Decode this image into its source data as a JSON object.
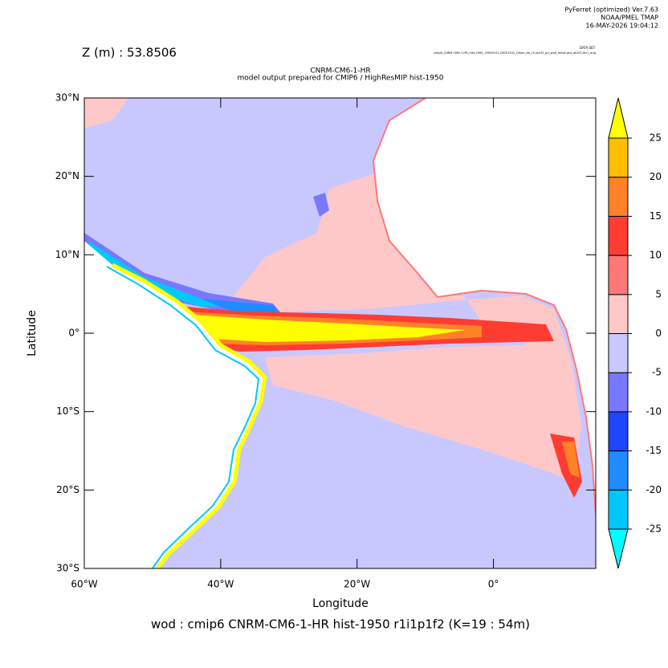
{
  "header": {
    "program": "PyFerret (optimized) Ver.7.63",
    "lab": "NOAA/PMEL TMAP",
    "date": "16-MAY-2026 19:04:12",
    "dataset_label": "DATA SET:",
    "dataset": "cmip6_CNRM-CM6-1-HR_hist-1950_19500101-20051231_Omon_tm_r1i1p1f2_gn_wod_mean.gtd_at023-lev1_orig",
    "depth": "Z (m) : 53.8506"
  },
  "chart_data": {
    "type": "map",
    "title": "CNRM-CM6-1-HR",
    "subtitle": "model output prepared for CMIP6 / HighResMIP hist-1950",
    "x_label": "Longitude",
    "y_label": "Latitude",
    "xlim": [
      -60,
      15
    ],
    "ylim": [
      -30,
      30
    ],
    "xticks": [
      {
        "value": -60,
        "label": "60°W"
      },
      {
        "value": -40,
        "label": "40°W"
      },
      {
        "value": -20,
        "label": "20°W"
      },
      {
        "value": 0,
        "label": "0°"
      }
    ],
    "yticks": [
      {
        "value": 30,
        "label": "30°N"
      },
      {
        "value": 20,
        "label": "20°N"
      },
      {
        "value": 10,
        "label": "10°N"
      },
      {
        "value": 0,
        "label": "0°"
      },
      {
        "value": -10,
        "label": "10°S"
      },
      {
        "value": -20,
        "label": "20°S"
      },
      {
        "value": -30,
        "label": "30°S"
      }
    ],
    "colorbar": {
      "levels": [
        -25,
        -20,
        -15,
        -10,
        -5,
        0,
        5,
        10,
        15,
        20,
        25
      ],
      "colors": [
        "#00ffff",
        "#00c8ff",
        "#1e8cff",
        "#1e46ff",
        "#7878ff",
        "#c8c8ff",
        "#ffc8c8",
        "#ff7878",
        "#ff3c32",
        "#ff8228",
        "#ffbe00",
        "#ffff00"
      ]
    },
    "footer": "wod : cmip6 CNRM-CM6-1-HR hist-1950 r1i1p1f2   (K=19 : 54m)"
  }
}
